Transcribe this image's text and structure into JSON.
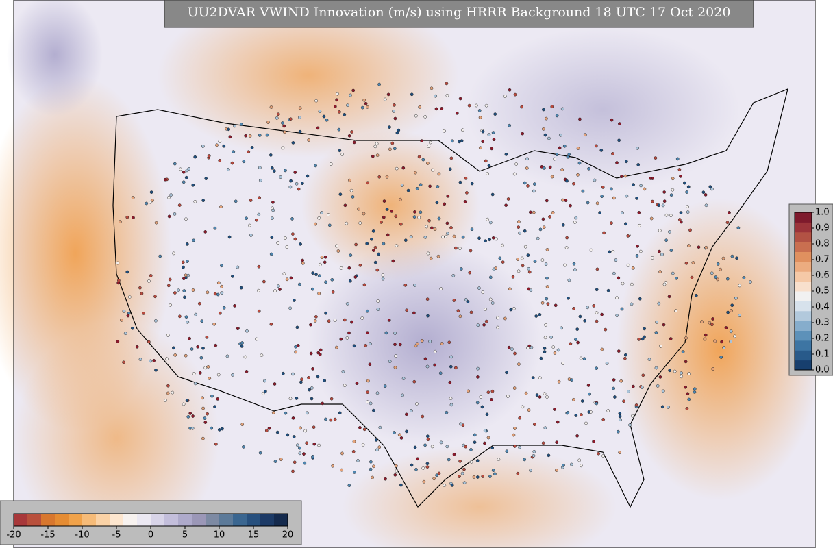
{
  "map": {
    "title": "UU2DVAR VWIND Innovation (m/s) using HRRR Background 18 UTC 17 Oct 2020",
    "colorbar_bottom": {
      "lim": [
        -20,
        20
      ],
      "ticks": [
        -20,
        -15,
        -10,
        -5,
        0,
        5,
        10,
        15,
        20
      ],
      "colors": [
        "#a8383a",
        "#b9503c",
        "#d8772e",
        "#e58c33",
        "#f0a24a",
        "#f6bb78",
        "#fad2a6",
        "#fde6cf",
        "#f7f2ef",
        "#ebe8f2",
        "#d8d4e8",
        "#c3bedb",
        "#aeaacb",
        "#9b97b7",
        "#7d8aa3",
        "#5c7a99",
        "#3a6690",
        "#27507e",
        "#1c3a66",
        "#142a4d"
      ]
    },
    "colorbar_right": {
      "lim": [
        0,
        1
      ],
      "ticks": [
        {
          "value": 0,
          "label": "0.0"
        },
        0.1,
        0.2,
        0.3,
        0.4,
        0.5,
        0.6,
        0.7,
        0.8,
        0.9,
        {
          "value": 1,
          "label": "1.0"
        }
      ],
      "colors": [
        "#173f6e",
        "#285a8a",
        "#3d75a3",
        "#5d91b9",
        "#86adcc",
        "#b2c9dc",
        "#d7e2ec",
        "#f1f1f1",
        "#f8e0cd",
        "#f5c9a7",
        "#ecac80",
        "#e0905f",
        "#c96f50",
        "#b25244",
        "#9b343a",
        "#7e1a2c"
      ]
    }
  }
}
